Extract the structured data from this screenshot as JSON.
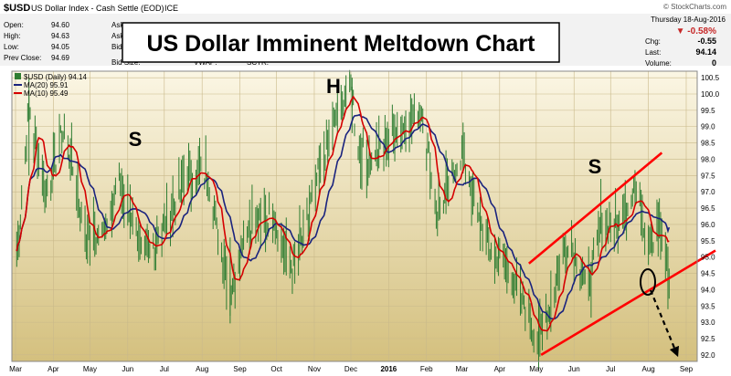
{
  "header": {
    "symbol": "$USD",
    "description": "US Dollar Index - Cash Settle (EOD)",
    "exchange": "ICE",
    "watermark": "© StockCharts.com",
    "date_line": "Thursday  18-Aug-2016",
    "fields_left": [
      {
        "label": "Open:",
        "value": "94.60"
      },
      {
        "label": "High:",
        "value": "94.63"
      },
      {
        "label": "Low:",
        "value": "94.05"
      },
      {
        "label": "Prev Close:",
        "value": "94.69"
      }
    ],
    "fields_mid": [
      "Ask:",
      "Ask S",
      "Bid:",
      "Bid Size:"
    ],
    "fields_right_row": [
      "VWAP:",
      "SCTR:"
    ],
    "change_pct": "▼ -0.58%",
    "fields_right": [
      {
        "label": "Chg:",
        "value": "-0.55"
      },
      {
        "label": "Last:",
        "value": "94.14"
      },
      {
        "label": "Volume:",
        "value": "0"
      }
    ]
  },
  "title_banner": "US Dollar Imminent Meltdown Chart",
  "annotations": {
    "left_shoulder": "S",
    "head": "H",
    "right_shoulder": "S"
  },
  "legend": [
    {
      "label": "$USD (Daily) 94.14",
      "color": "#2e7d32"
    },
    {
      "label": "MA(20) 95.91",
      "color": "#1a237e"
    },
    {
      "label": "MA(10) 95.49",
      "color": "#d50000"
    }
  ],
  "colors": {
    "bars": "#2e7d32",
    "ma20": "#1a237e",
    "ma10": "#d50000",
    "plot_bg_top": "#fbf6e4",
    "plot_bg_bottom": "#d7c381",
    "trendline": "#ff0000"
  },
  "chart_data": {
    "type": "ohlc",
    "title": "US Dollar Imminent Meltdown Chart",
    "xlabel": "",
    "ylabel": "",
    "ylim": [
      91.8,
      100.7
    ],
    "y_ticks": [
      92.0,
      92.5,
      93.0,
      93.5,
      94.0,
      94.5,
      95.0,
      95.5,
      96.0,
      96.5,
      97.0,
      97.5,
      98.0,
      98.5,
      99.0,
      99.5,
      100.0,
      100.5
    ],
    "x_ticks": [
      "Mar",
      "Apr",
      "May",
      "Jun",
      "Jul",
      "Aug",
      "Sep",
      "Oct",
      "Nov",
      "Dec",
      "2016",
      "Feb",
      "Mar",
      "Apr",
      "May",
      "Jun",
      "Jul",
      "Aug",
      "Sep"
    ],
    "price_path": [
      {
        "date": "2015-03-01",
        "close": 94.6
      },
      {
        "date": "2015-03-12",
        "close": 99.5
      },
      {
        "date": "2015-03-26",
        "close": 97.0
      },
      {
        "date": "2015-04-10",
        "close": 99.0
      },
      {
        "date": "2015-04-28",
        "close": 95.5
      },
      {
        "date": "2015-05-12",
        "close": 95.8
      },
      {
        "date": "2015-05-25",
        "close": 97.3
      },
      {
        "date": "2015-06-15",
        "close": 95.0
      },
      {
        "date": "2015-07-01",
        "close": 95.9
      },
      {
        "date": "2015-07-20",
        "close": 97.6
      },
      {
        "date": "2015-08-05",
        "close": 97.5
      },
      {
        "date": "2015-08-24",
        "close": 93.8
      },
      {
        "date": "2015-09-05",
        "close": 95.9
      },
      {
        "date": "2015-09-28",
        "close": 96.3
      },
      {
        "date": "2015-10-14",
        "close": 94.5
      },
      {
        "date": "2015-11-05",
        "close": 97.5
      },
      {
        "date": "2015-11-20",
        "close": 99.5
      },
      {
        "date": "2015-12-02",
        "close": 100.2
      },
      {
        "date": "2015-12-05",
        "close": 98.5
      },
      {
        "date": "2015-12-15",
        "close": 97.9
      },
      {
        "date": "2016-01-05",
        "close": 98.8
      },
      {
        "date": "2016-01-28",
        "close": 99.5
      },
      {
        "date": "2016-02-10",
        "close": 96.2
      },
      {
        "date": "2016-03-01",
        "close": 98.2
      },
      {
        "date": "2016-03-20",
        "close": 95.5
      },
      {
        "date": "2016-04-10",
        "close": 94.5
      },
      {
        "date": "2016-05-03",
        "close": 92.4
      },
      {
        "date": "2016-05-28",
        "close": 95.6
      },
      {
        "date": "2016-06-12",
        "close": 94.0
      },
      {
        "date": "2016-06-24",
        "close": 96.2
      },
      {
        "date": "2016-07-06",
        "close": 95.8
      },
      {
        "date": "2016-07-20",
        "close": 97.2
      },
      {
        "date": "2016-08-02",
        "close": 95.5
      },
      {
        "date": "2016-08-10",
        "close": 96.0
      },
      {
        "date": "2016-08-18",
        "close": 94.14
      }
    ],
    "series": [
      {
        "name": "$USD (Daily)",
        "last": 94.14
      },
      {
        "name": "MA(20)",
        "last": 95.91
      },
      {
        "name": "MA(10)",
        "last": 95.49
      }
    ],
    "trendlines": [
      {
        "from": {
          "date": "2016-04-25",
          "y": 94.8
        },
        "to": {
          "date": "2016-08-12",
          "y": 98.2
        }
      },
      {
        "from": {
          "date": "2016-05-05",
          "y": 92.0
        },
        "to": {
          "date": "2016-09-25",
          "y": 95.2
        }
      }
    ]
  }
}
